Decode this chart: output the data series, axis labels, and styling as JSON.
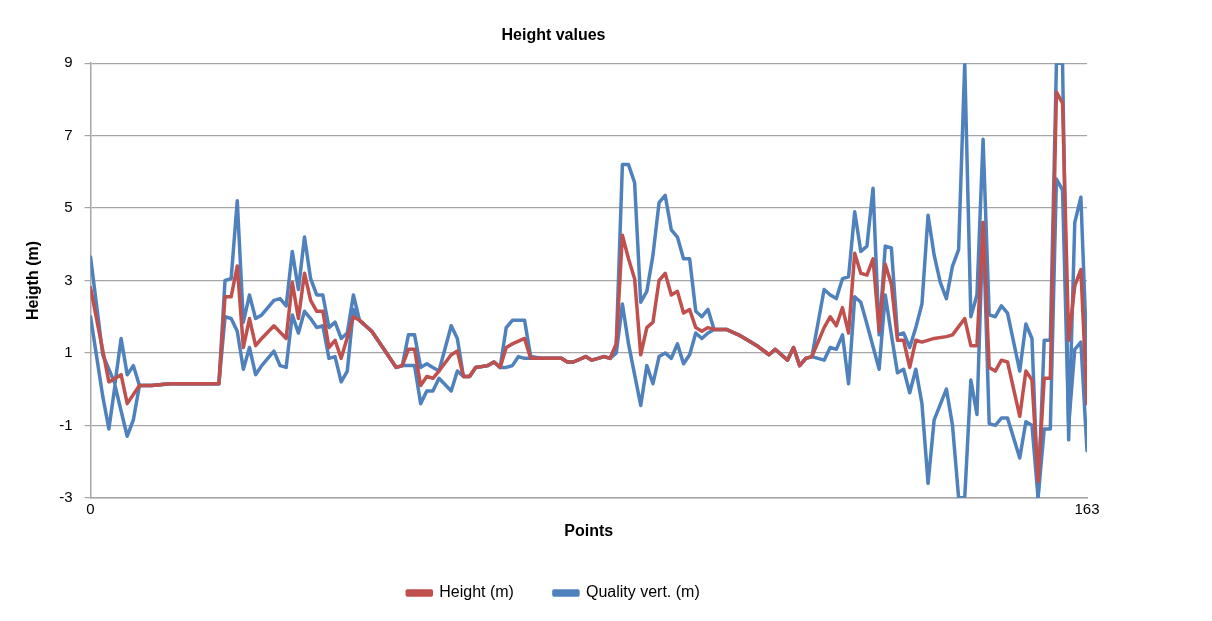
{
  "chart_data": {
    "type": "line",
    "title": "Height values",
    "xlabel": "Points",
    "ylabel": "Heigth (m)",
    "xlim": [
      0,
      163
    ],
    "xticks": [
      0,
      163
    ],
    "ylim": [
      -3,
      9
    ],
    "yticks": [
      -3,
      -1,
      1,
      3,
      5,
      7,
      9
    ],
    "grid": "y",
    "legend": "bottom",
    "line_style": "solid",
    "series": [
      {
        "name": "Height (m)",
        "color": "#c0504d",
        "x": [
          0,
          3,
          5,
          6,
          8,
          10,
          13,
          16,
          21,
          22,
          23,
          24,
          25,
          26,
          27,
          28,
          30,
          32,
          33,
          34,
          35,
          36,
          37,
          38,
          39,
          40,
          41,
          43,
          44,
          46,
          48,
          50,
          51,
          52,
          53,
          54,
          55,
          56,
          57,
          59,
          60,
          61,
          62,
          63,
          65,
          66,
          67,
          68,
          69,
          71,
          72,
          74,
          77,
          78,
          79,
          81,
          82,
          83,
          84,
          85,
          86,
          87,
          88,
          89,
          90,
          91,
          92,
          93,
          94,
          95,
          96,
          97,
          98,
          99,
          100,
          101,
          102,
          104,
          106,
          108,
          109,
          111,
          112,
          113,
          114,
          115,
          116,
          117,
          118,
          120,
          121,
          122,
          123,
          124,
          125,
          126,
          127,
          128,
          129,
          130,
          131,
          132,
          133,
          134,
          135,
          136,
          138,
          140,
          141,
          143,
          144,
          145,
          146,
          147,
          148,
          149,
          150,
          152,
          153,
          154,
          155,
          156,
          157,
          158,
          159,
          160,
          161,
          162,
          163
        ],
        "values": [
          2.8,
          0.2,
          0.4,
          -0.4,
          0.1,
          0.1,
          0.15,
          0.15,
          0.15,
          2.55,
          2.55,
          3.4,
          1.15,
          1.95,
          1.2,
          1.4,
          1.75,
          1.4,
          2.95,
          1.95,
          3.2,
          2.45,
          2.15,
          2.15,
          1.15,
          1.35,
          0.85,
          2.0,
          1.9,
          1.6,
          1.1,
          0.6,
          0.65,
          1.1,
          1.1,
          0.1,
          0.35,
          0.3,
          0.5,
          0.95,
          1.05,
          0.35,
          0.35,
          0.6,
          0.65,
          0.75,
          0.6,
          1.15,
          1.25,
          1.4,
          0.85,
          0.85,
          0.85,
          0.75,
          0.75,
          0.9,
          0.8,
          0.85,
          0.9,
          0.85,
          1.25,
          4.25,
          3.6,
          3.05,
          0.95,
          1.7,
          1.85,
          3.0,
          3.2,
          2.6,
          2.7,
          2.1,
          2.2,
          1.7,
          1.6,
          1.7,
          1.65,
          1.65,
          1.5,
          1.3,
          1.2,
          0.95,
          1.1,
          0.95,
          0.8,
          1.15,
          0.65,
          0.85,
          0.9,
          1.7,
          2.0,
          1.75,
          2.25,
          1.55,
          3.75,
          3.2,
          3.15,
          3.6,
          1.6,
          3.45,
          2.9,
          1.35,
          1.35,
          0.6,
          1.35,
          1.3,
          1.4,
          1.45,
          1.5,
          1.95,
          1.2,
          1.2,
          4.6,
          0.6,
          0.5,
          0.8,
          0.75,
          -0.75,
          0.5,
          0.25,
          -2.55,
          0.3,
          0.3,
          8.2,
          7.9,
          1.35,
          2.85,
          3.3,
          -0.4
        ]
      },
      {
        "name": "Quality vert. (m)",
        "color": "#4f81bd",
        "x": [
          0,
          2,
          4,
          5,
          6,
          7,
          8,
          10,
          13,
          16,
          21,
          22,
          23,
          24,
          25,
          26,
          27,
          28,
          30,
          31,
          32,
          33,
          34,
          35,
          36,
          37,
          38,
          39,
          40,
          41,
          42,
          43,
          44,
          46,
          48,
          50,
          51,
          52,
          53,
          54,
          55,
          56,
          57,
          59,
          60,
          61,
          62,
          63,
          65,
          66,
          67,
          68,
          69,
          71,
          72,
          74,
          77,
          78,
          79,
          81,
          82,
          83,
          84,
          85,
          86,
          87,
          88,
          89,
          90,
          91,
          92,
          93,
          94,
          95,
          96,
          97,
          98,
          99,
          100,
          101,
          102,
          104,
          106,
          108,
          109,
          111,
          112,
          113,
          114,
          115,
          116,
          117,
          118,
          120,
          121,
          122,
          123,
          124,
          125,
          126,
          127,
          128,
          129,
          130,
          131,
          132,
          133,
          134,
          135,
          136,
          137,
          138,
          139,
          140,
          141,
          142,
          143,
          144,
          145,
          146,
          147,
          148,
          149,
          150,
          152,
          153,
          154,
          155,
          156,
          157,
          158,
          159,
          160,
          161,
          162,
          163
        ],
        "values": [
          3.65,
          0.95,
          0.15,
          1.4,
          0.4,
          0.65,
          0.1,
          0.1,
          0.15,
          0.15,
          0.15,
          3.0,
          3.05,
          5.2,
          1.85,
          2.6,
          1.95,
          2.05,
          2.45,
          2.5,
          2.3,
          3.8,
          2.75,
          4.2,
          3.05,
          2.6,
          2.6,
          1.7,
          1.85,
          1.4,
          1.55,
          2.6,
          1.9,
          1.6,
          1.1,
          0.6,
          0.65,
          1.5,
          1.5,
          0.6,
          0.7,
          0.6,
          0.5,
          1.75,
          1.4,
          0.35,
          0.35,
          0.6,
          0.65,
          0.75,
          0.6,
          1.7,
          1.9,
          1.9,
          0.9,
          0.85,
          0.85,
          0.75,
          0.75,
          0.9,
          0.8,
          0.85,
          0.9,
          0.85,
          1.25,
          6.2,
          6.2,
          5.7,
          2.4,
          2.7,
          3.7,
          5.15,
          5.35,
          4.4,
          4.2,
          3.6,
          3.6,
          2.15,
          2.0,
          2.2,
          1.65,
          1.65,
          1.5,
          1.3,
          1.2,
          0.95,
          1.1,
          0.95,
          0.8,
          1.15,
          0.65,
          0.85,
          0.9,
          2.75,
          2.6,
          2.5,
          3.05,
          3.1,
          4.9,
          3.8,
          3.95,
          5.55,
          1.5,
          3.95,
          3.9,
          1.5,
          1.55,
          1.15,
          1.7,
          2.35,
          4.8,
          3.7,
          2.95,
          2.5,
          3.4,
          3.85,
          9,
          2.0,
          2.6,
          6.9,
          2.05,
          2.0,
          2.3,
          2.1,
          0.5,
          1.8,
          1.4,
          -3,
          1.35,
          1.35,
          9,
          9,
          -1.4,
          4.6,
          5.3,
          0.8
        ]
      },
      {
        "color": "#4f81bd",
        "x": [
          0,
          2,
          3,
          4,
          6,
          7,
          8,
          10,
          13,
          16,
          21,
          22,
          23,
          24,
          25,
          26,
          27,
          28,
          30,
          31,
          32,
          33,
          34,
          35,
          36,
          37,
          38,
          39,
          40,
          41,
          42,
          43,
          44,
          46,
          48,
          50,
          51,
          52,
          53,
          54,
          55,
          56,
          57,
          59,
          60,
          61,
          62,
          63,
          65,
          66,
          67,
          68,
          69,
          70,
          71,
          72,
          74,
          77,
          78,
          79,
          81,
          82,
          83,
          84,
          85,
          86,
          87,
          88,
          90,
          91,
          92,
          93,
          94,
          95,
          96,
          97,
          98,
          99,
          100,
          101,
          102,
          104,
          106,
          108,
          109,
          111,
          112,
          113,
          114,
          115,
          116,
          117,
          118,
          120,
          121,
          122,
          123,
          124,
          125,
          126,
          127,
          129,
          130,
          131,
          132,
          133,
          134,
          135,
          136,
          137,
          138,
          140,
          141,
          142,
          143,
          144,
          145,
          146,
          147,
          148,
          149,
          150,
          152,
          153,
          154,
          155,
          156,
          157,
          158,
          159,
          160,
          161,
          162,
          163
        ],
        "values": [
          2.0,
          -0.2,
          -1.1,
          0.1,
          -1.3,
          -0.85,
          0.1,
          0.1,
          0.15,
          0.15,
          0.15,
          2.0,
          1.95,
          1.6,
          0.55,
          1.15,
          0.4,
          0.65,
          1.05,
          0.65,
          0.6,
          2.05,
          1.55,
          2.15,
          1.95,
          1.7,
          1.75,
          0.85,
          0.9,
          0.2,
          0.5,
          2.2,
          1.9,
          1.6,
          1.1,
          0.6,
          0.65,
          0.65,
          0.65,
          -0.4,
          -0.05,
          -0.05,
          0.3,
          -0.05,
          0.5,
          0.35,
          0.35,
          0.6,
          0.65,
          0.75,
          0.6,
          0.6,
          0.65,
          0.9,
          0.85,
          0.85,
          0.85,
          0.85,
          0.75,
          0.75,
          0.9,
          0.8,
          0.85,
          0.9,
          0.85,
          1.0,
          2.35,
          1.25,
          -0.45,
          0.65,
          0.15,
          0.9,
          1.0,
          0.85,
          1.25,
          0.7,
          0.95,
          1.55,
          1.4,
          1.55,
          1.65,
          1.65,
          1.5,
          1.3,
          1.2,
          0.95,
          1.1,
          0.95,
          0.8,
          1.15,
          0.65,
          0.85,
          0.9,
          0.8,
          1.15,
          1.1,
          1.5,
          0.15,
          2.55,
          2.4,
          1.8,
          0.55,
          2.6,
          1.5,
          0.45,
          0.55,
          -0.1,
          0.55,
          -0.4,
          -2.6,
          -0.85,
          0.0,
          -1.0,
          -3,
          -3,
          0.25,
          -0.7,
          4.6,
          -0.95,
          -1.0,
          -0.8,
          -0.8,
          -1.9,
          -0.9,
          -1.0,
          -3,
          -1.1,
          -1.1,
          5.8,
          5.5,
          -1.0,
          1.1,
          1.3,
          -1.7
        ]
      }
    ]
  }
}
